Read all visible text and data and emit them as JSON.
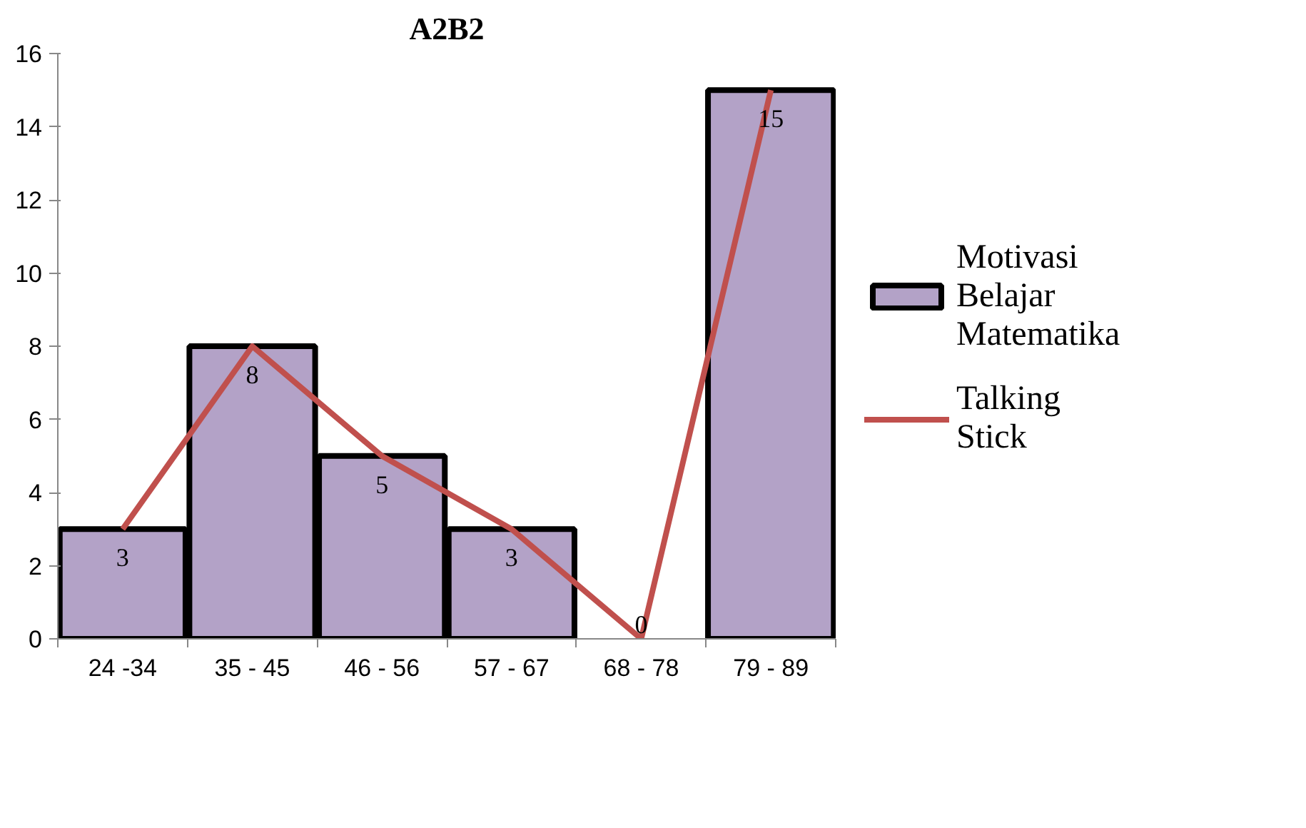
{
  "chart_data": {
    "type": "bar",
    "title": "A2B2",
    "categories": [
      "24 -34",
      "35 - 45",
      "46 - 56",
      "57 - 67",
      "68 - 78",
      "79 - 89"
    ],
    "series": [
      {
        "name": "Motivasi Belajar Matematika",
        "color": "#b3a2c7",
        "values": [
          3,
          8,
          5,
          3,
          0,
          15
        ],
        "value_labels": [
          "3",
          "8",
          "5",
          "3",
          "0",
          "15"
        ]
      },
      {
        "name": "Talking Stick",
        "type": "line",
        "color": "#c0504d",
        "values": [
          3,
          8,
          5,
          3,
          0,
          15
        ]
      }
    ],
    "ylim": [
      0,
      16
    ],
    "yticks": [
      0,
      2,
      4,
      6,
      8,
      10,
      12,
      14,
      16
    ],
    "grid": false,
    "legend": "right"
  }
}
